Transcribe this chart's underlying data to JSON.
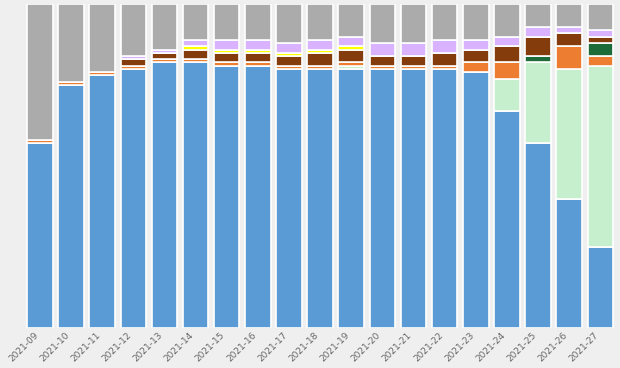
{
  "weeks": [
    "2021-09",
    "2021-10",
    "2021-11",
    "2021-12",
    "2021-13",
    "2021-14",
    "2021-15",
    "2021-16",
    "2021-17",
    "2021-18",
    "2021-19",
    "2021-20",
    "2021-21",
    "2021-22",
    "2021-23",
    "2021-24",
    "2021-25",
    "2021-26",
    "2021-27"
  ],
  "series": {
    "Alpha": [
      57,
      75,
      78,
      80,
      82,
      82,
      81,
      81,
      80,
      80,
      80,
      80,
      80,
      80,
      79,
      67,
      57,
      40,
      25
    ],
    "Delta": [
      0,
      0,
      0,
      0,
      0,
      0,
      0,
      0,
      0,
      0,
      1,
      0,
      0,
      0,
      0,
      10,
      25,
      40,
      56
    ],
    "Orange": [
      1,
      1,
      1,
      1,
      1,
      1,
      1,
      1,
      1,
      1,
      1,
      1,
      1,
      1,
      3,
      5,
      0,
      7,
      3
    ],
    "DarkGreen": [
      0,
      0,
      0,
      0,
      0,
      0,
      0,
      0,
      0,
      0,
      0,
      0,
      0,
      0,
      0,
      0,
      2,
      0,
      4
    ],
    "Brown": [
      0,
      0,
      0,
      2,
      2,
      3,
      3,
      3,
      3,
      4,
      4,
      3,
      3,
      4,
      4,
      5,
      6,
      4,
      2
    ],
    "Yellow": [
      0,
      0,
      0,
      0,
      0,
      1,
      1,
      1,
      1,
      1,
      1,
      0,
      0,
      0,
      0,
      0,
      0,
      0,
      0
    ],
    "Purple": [
      0,
      0,
      0,
      1,
      1,
      2,
      3,
      3,
      3,
      3,
      3,
      4,
      4,
      4,
      3,
      3,
      3,
      2,
      2
    ],
    "Gray": [
      42,
      24,
      21,
      16,
      14,
      11,
      11,
      11,
      12,
      11,
      10,
      12,
      12,
      11,
      11,
      10,
      7,
      7,
      8
    ]
  },
  "colors": {
    "Alpha": "#5B9BD5",
    "Delta": "#C6EFCE",
    "Orange": "#ED7D31",
    "DarkGreen": "#1E6B3A",
    "Brown": "#843C0C",
    "Yellow": "#FFFF00",
    "Purple": "#D9B3FF",
    "Gray": "#ABABAB"
  },
  "background_color": "#EFEFEF",
  "figsize": [
    6.2,
    3.68
  ],
  "dpi": 100
}
